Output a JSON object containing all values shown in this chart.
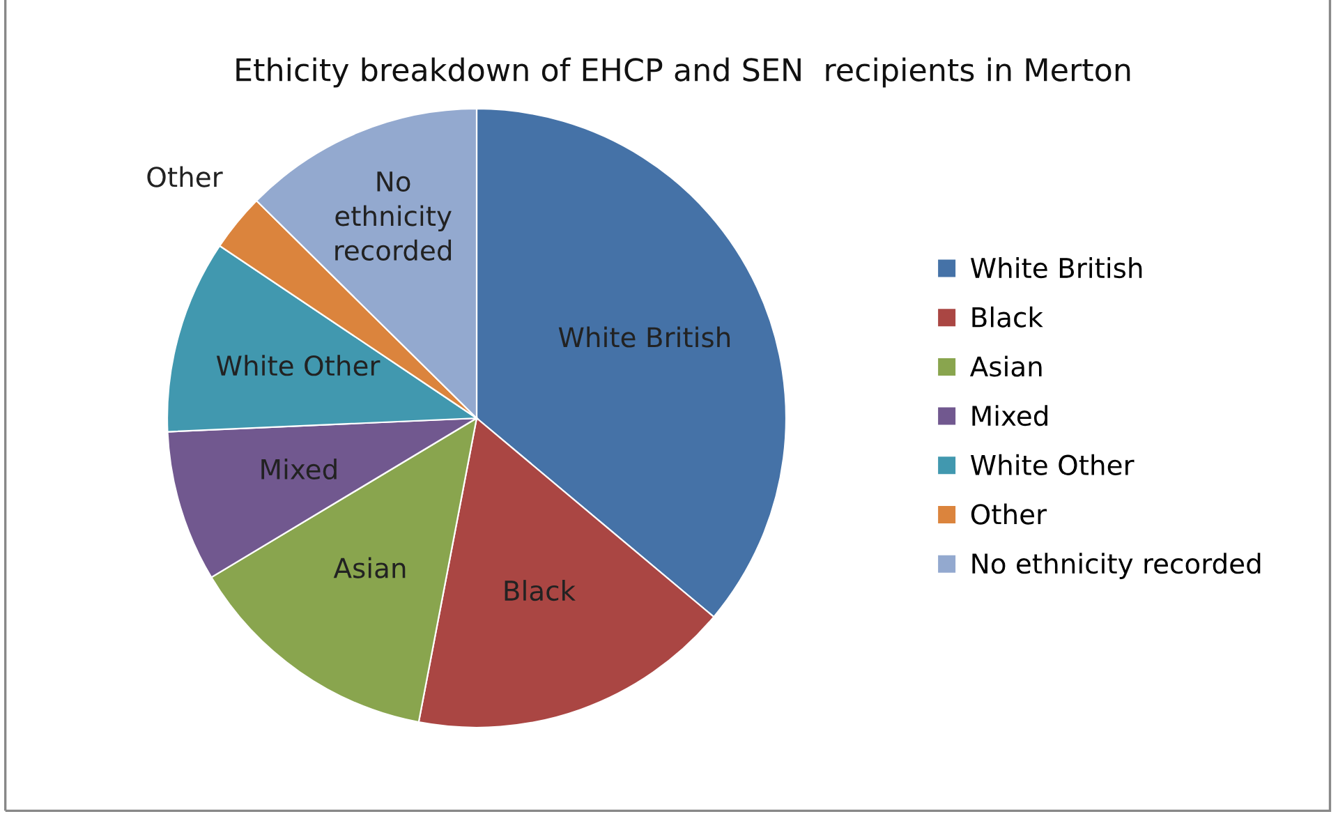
{
  "chart_data": {
    "type": "pie",
    "title": "Ethicity breakdown of EHCP and SEN  recipients in Merton",
    "categories": [
      "White British",
      "Black",
      "Asian",
      "Mixed",
      "White Other",
      "Other",
      "No ethnicity recorded"
    ],
    "values": [
      36.1,
      16.9,
      13.4,
      7.9,
      10.1,
      3.0,
      12.6
    ],
    "colors": [
      "#4572a7",
      "#aa4643",
      "#89a54e",
      "#71588f",
      "#4198af",
      "#db843d",
      "#93a9cf"
    ],
    "legend": "right"
  }
}
